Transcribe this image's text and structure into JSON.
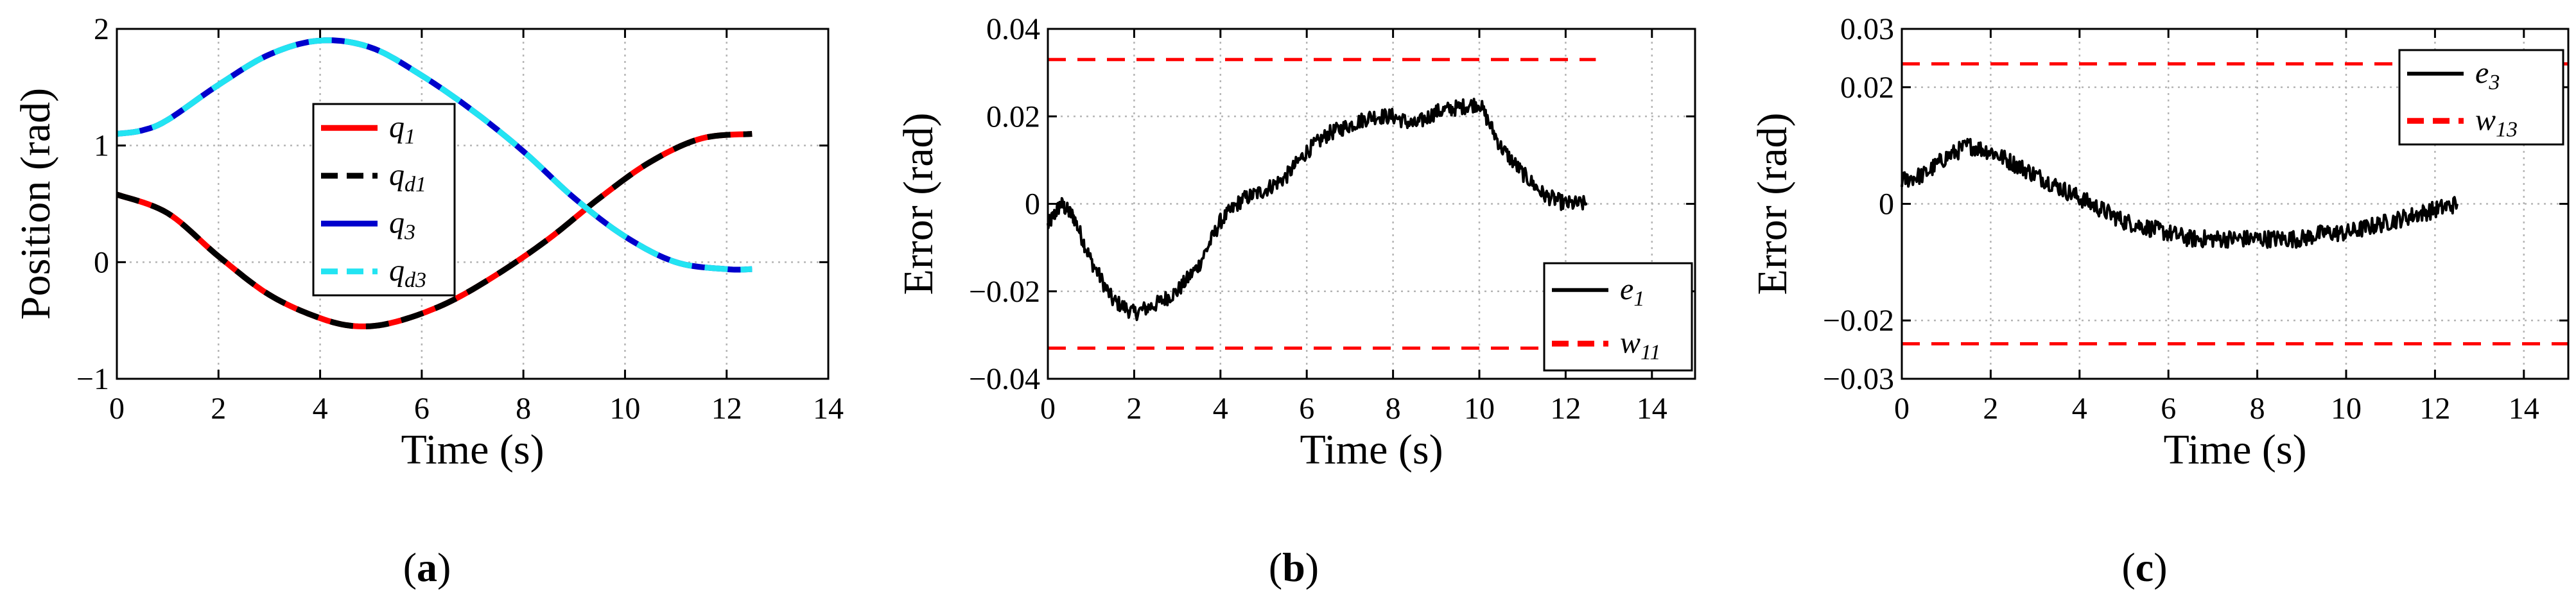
{
  "chart_data": [
    {
      "type": "line",
      "panel_label": "a",
      "xlabel": "Time (s)",
      "ylabel": "Position (rad)",
      "xlim": [
        0,
        14
      ],
      "ylim": [
        -1,
        2
      ],
      "xticks": [
        "0",
        "2",
        "4",
        "6",
        "8",
        "10",
        "12",
        "14"
      ],
      "yticks": [
        "−1",
        "0",
        "1",
        "2"
      ],
      "grid": true,
      "legend_position": "center-right",
      "series": [
        {
          "name": "q",
          "sub": "1",
          "color": "#ff0000",
          "style": "solid",
          "x": [
            0,
            1,
            2,
            3,
            4,
            4.75,
            5.5,
            6.5,
            7.5,
            8.5,
            9.5,
            10.5,
            11.5,
            12.5
          ],
          "y": [
            0.58,
            0.42,
            0.05,
            -0.28,
            -0.48,
            -0.55,
            -0.51,
            -0.35,
            -0.1,
            0.2,
            0.55,
            0.86,
            1.06,
            1.1
          ]
        },
        {
          "name": "q",
          "sub": "d1",
          "color": "#000000",
          "style": "dashed",
          "x": [
            0,
            1,
            2,
            3,
            4,
            4.75,
            5.5,
            6.5,
            7.5,
            8.5,
            9.5,
            10.5,
            11.5,
            12.5
          ],
          "y": [
            0.58,
            0.42,
            0.05,
            -0.28,
            -0.48,
            -0.55,
            -0.51,
            -0.35,
            -0.1,
            0.2,
            0.55,
            0.86,
            1.06,
            1.1
          ]
        },
        {
          "name": "q",
          "sub": "3",
          "color": "#0000cc",
          "style": "solid",
          "x": [
            0,
            0.5,
            1,
            2,
            3,
            4,
            5,
            6,
            7,
            8,
            9,
            10,
            11,
            12,
            12.5
          ],
          "y": [
            1.1,
            1.13,
            1.22,
            1.52,
            1.78,
            1.9,
            1.84,
            1.6,
            1.3,
            0.95,
            0.55,
            0.22,
            0.0,
            -0.06,
            -0.06
          ]
        },
        {
          "name": "q",
          "sub": "d3",
          "color": "#22e4f2",
          "style": "dashed",
          "x": [
            0,
            0.5,
            1,
            2,
            3,
            4,
            5,
            6,
            7,
            8,
            9,
            10,
            11,
            12,
            12.5
          ],
          "y": [
            1.1,
            1.13,
            1.22,
            1.52,
            1.78,
            1.9,
            1.84,
            1.6,
            1.3,
            0.95,
            0.55,
            0.22,
            0.0,
            -0.06,
            -0.06
          ]
        }
      ]
    },
    {
      "type": "line",
      "panel_label": "b",
      "xlabel": "Time (s)",
      "ylabel": "Error (rad)",
      "xlim": [
        0,
        15
      ],
      "ylim": [
        -0.04,
        0.04
      ],
      "xticks": [
        "0",
        "2",
        "4",
        "6",
        "8",
        "10",
        "12",
        "14"
      ],
      "yticks": [
        "−0.04",
        "−0.02",
        "0",
        "0.02",
        "0.04"
      ],
      "grid": true,
      "legend_position": "bottom-right",
      "series": [
        {
          "name": "e",
          "sub": "1",
          "color": "#000000",
          "style": "solid",
          "x": [
            0,
            0.3,
            0.6,
            1.0,
            1.5,
            2.0,
            2.5,
            3.0,
            3.5,
            4.0,
            4.5,
            5.0,
            5.5,
            6.0,
            6.5,
            7.0,
            7.5,
            8.0,
            8.5,
            9.0,
            9.5,
            10.0,
            10.5,
            11.0,
            11.5,
            12.0,
            12.5
          ],
          "y": [
            -0.005,
            0.0,
            -0.003,
            -0.013,
            -0.022,
            -0.025,
            -0.023,
            -0.02,
            -0.014,
            -0.004,
            0.001,
            0.003,
            0.006,
            0.012,
            0.016,
            0.018,
            0.02,
            0.02,
            0.018,
            0.021,
            0.022,
            0.023,
            0.013,
            0.007,
            0.002,
            0.0,
            0.0
          ],
          "noise_amplitude": 0.0018
        },
        {
          "name": "w",
          "sub": "11",
          "color": "#ff0000",
          "style": "dashed",
          "x": [
            0,
            12.7
          ],
          "y": [
            0.033,
            0.033
          ]
        },
        {
          "name": "",
          "color": "#ff0000",
          "style": "dashed",
          "x": [
            0,
            12.7
          ],
          "y": [
            -0.033,
            -0.033
          ]
        }
      ]
    },
    {
      "type": "line",
      "panel_label": "c",
      "xlabel": "Time (s)",
      "ylabel": "Error (rad)",
      "xlim": [
        0,
        15
      ],
      "ylim": [
        -0.03,
        0.03
      ],
      "xticks": [
        "0",
        "2",
        "4",
        "6",
        "8",
        "10",
        "12",
        "14"
      ],
      "yticks": [
        "−0.03",
        "−0.02",
        "0",
        "0.02",
        "0.03"
      ],
      "ytick_values": [
        -0.03,
        -0.02,
        0,
        0.02,
        0.03
      ],
      "grid": true,
      "legend_position": "top-right",
      "series": [
        {
          "name": "e",
          "sub": "3",
          "color": "#000000",
          "style": "solid",
          "x": [
            0,
            0.5,
            1.0,
            1.5,
            2.0,
            2.5,
            3.0,
            3.5,
            4.0,
            4.5,
            5.0,
            5.5,
            6.0,
            6.5,
            7.0,
            7.5,
            8.0,
            8.5,
            9.0,
            9.5,
            10.0,
            10.5,
            11.0,
            11.5,
            12.0,
            12.5
          ],
          "y": [
            0.004,
            0.005,
            0.008,
            0.01,
            0.009,
            0.007,
            0.005,
            0.003,
            0.001,
            -0.001,
            -0.003,
            -0.004,
            -0.005,
            -0.006,
            -0.006,
            -0.006,
            -0.006,
            -0.006,
            -0.006,
            -0.005,
            -0.005,
            -0.004,
            -0.003,
            -0.002,
            -0.001,
            0.0
          ],
          "noise_amplitude": 0.0015
        },
        {
          "name": "w",
          "sub": "13",
          "color": "#ff0000",
          "style": "dashed",
          "x": [
            0,
            15
          ],
          "y": [
            0.024,
            0.024
          ]
        },
        {
          "name": "",
          "color": "#ff0000",
          "style": "dashed",
          "x": [
            0,
            15
          ],
          "y": [
            -0.024,
            -0.024
          ]
        }
      ]
    }
  ]
}
